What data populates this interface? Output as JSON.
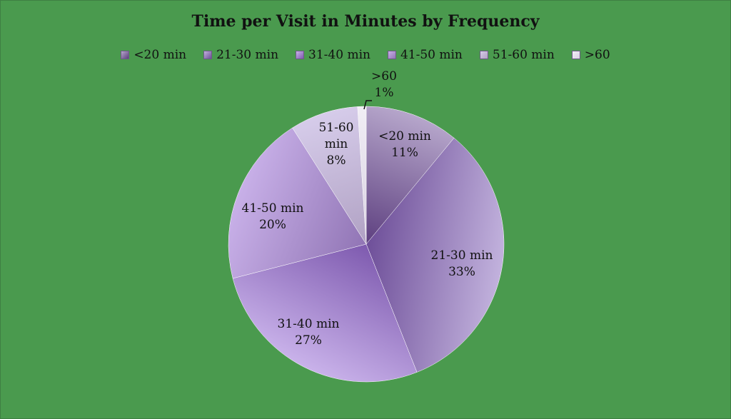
{
  "chart_data": {
    "type": "pie",
    "title": "Time per Visit in Minutes by Frequency",
    "legend_position": "top",
    "categories": [
      "<20 min",
      "21-30 min",
      "31-40 min",
      "41-50 min",
      "51-60 min",
      ">60"
    ],
    "values": [
      11,
      33,
      27,
      20,
      8,
      1
    ],
    "unit": "%",
    "colors": {
      "background": "#4a9a4e",
      "slice_inner": [
        "#5d3f7f",
        "#6e4f99",
        "#7e5aaf",
        "#9175b5",
        "#b0a1c3",
        "#d8d0e2"
      ],
      "slice_outer": [
        "#b6a6cb",
        "#c2b2dd",
        "#c9b2ea",
        "#c8b0e8",
        "#d6ccea",
        "#f1eef5"
      ]
    },
    "labels": [
      {
        "lines": [
          "<20 min",
          "11%"
        ]
      },
      {
        "lines": [
          "21-30 min",
          "33%"
        ]
      },
      {
        "lines": [
          "31-40 min",
          "27%"
        ]
      },
      {
        "lines": [
          "41-50 min",
          "20%"
        ]
      },
      {
        "lines": [
          "51-60",
          "min",
          "8%"
        ]
      },
      {
        "lines": [
          ">60",
          "1%"
        ]
      }
    ]
  }
}
